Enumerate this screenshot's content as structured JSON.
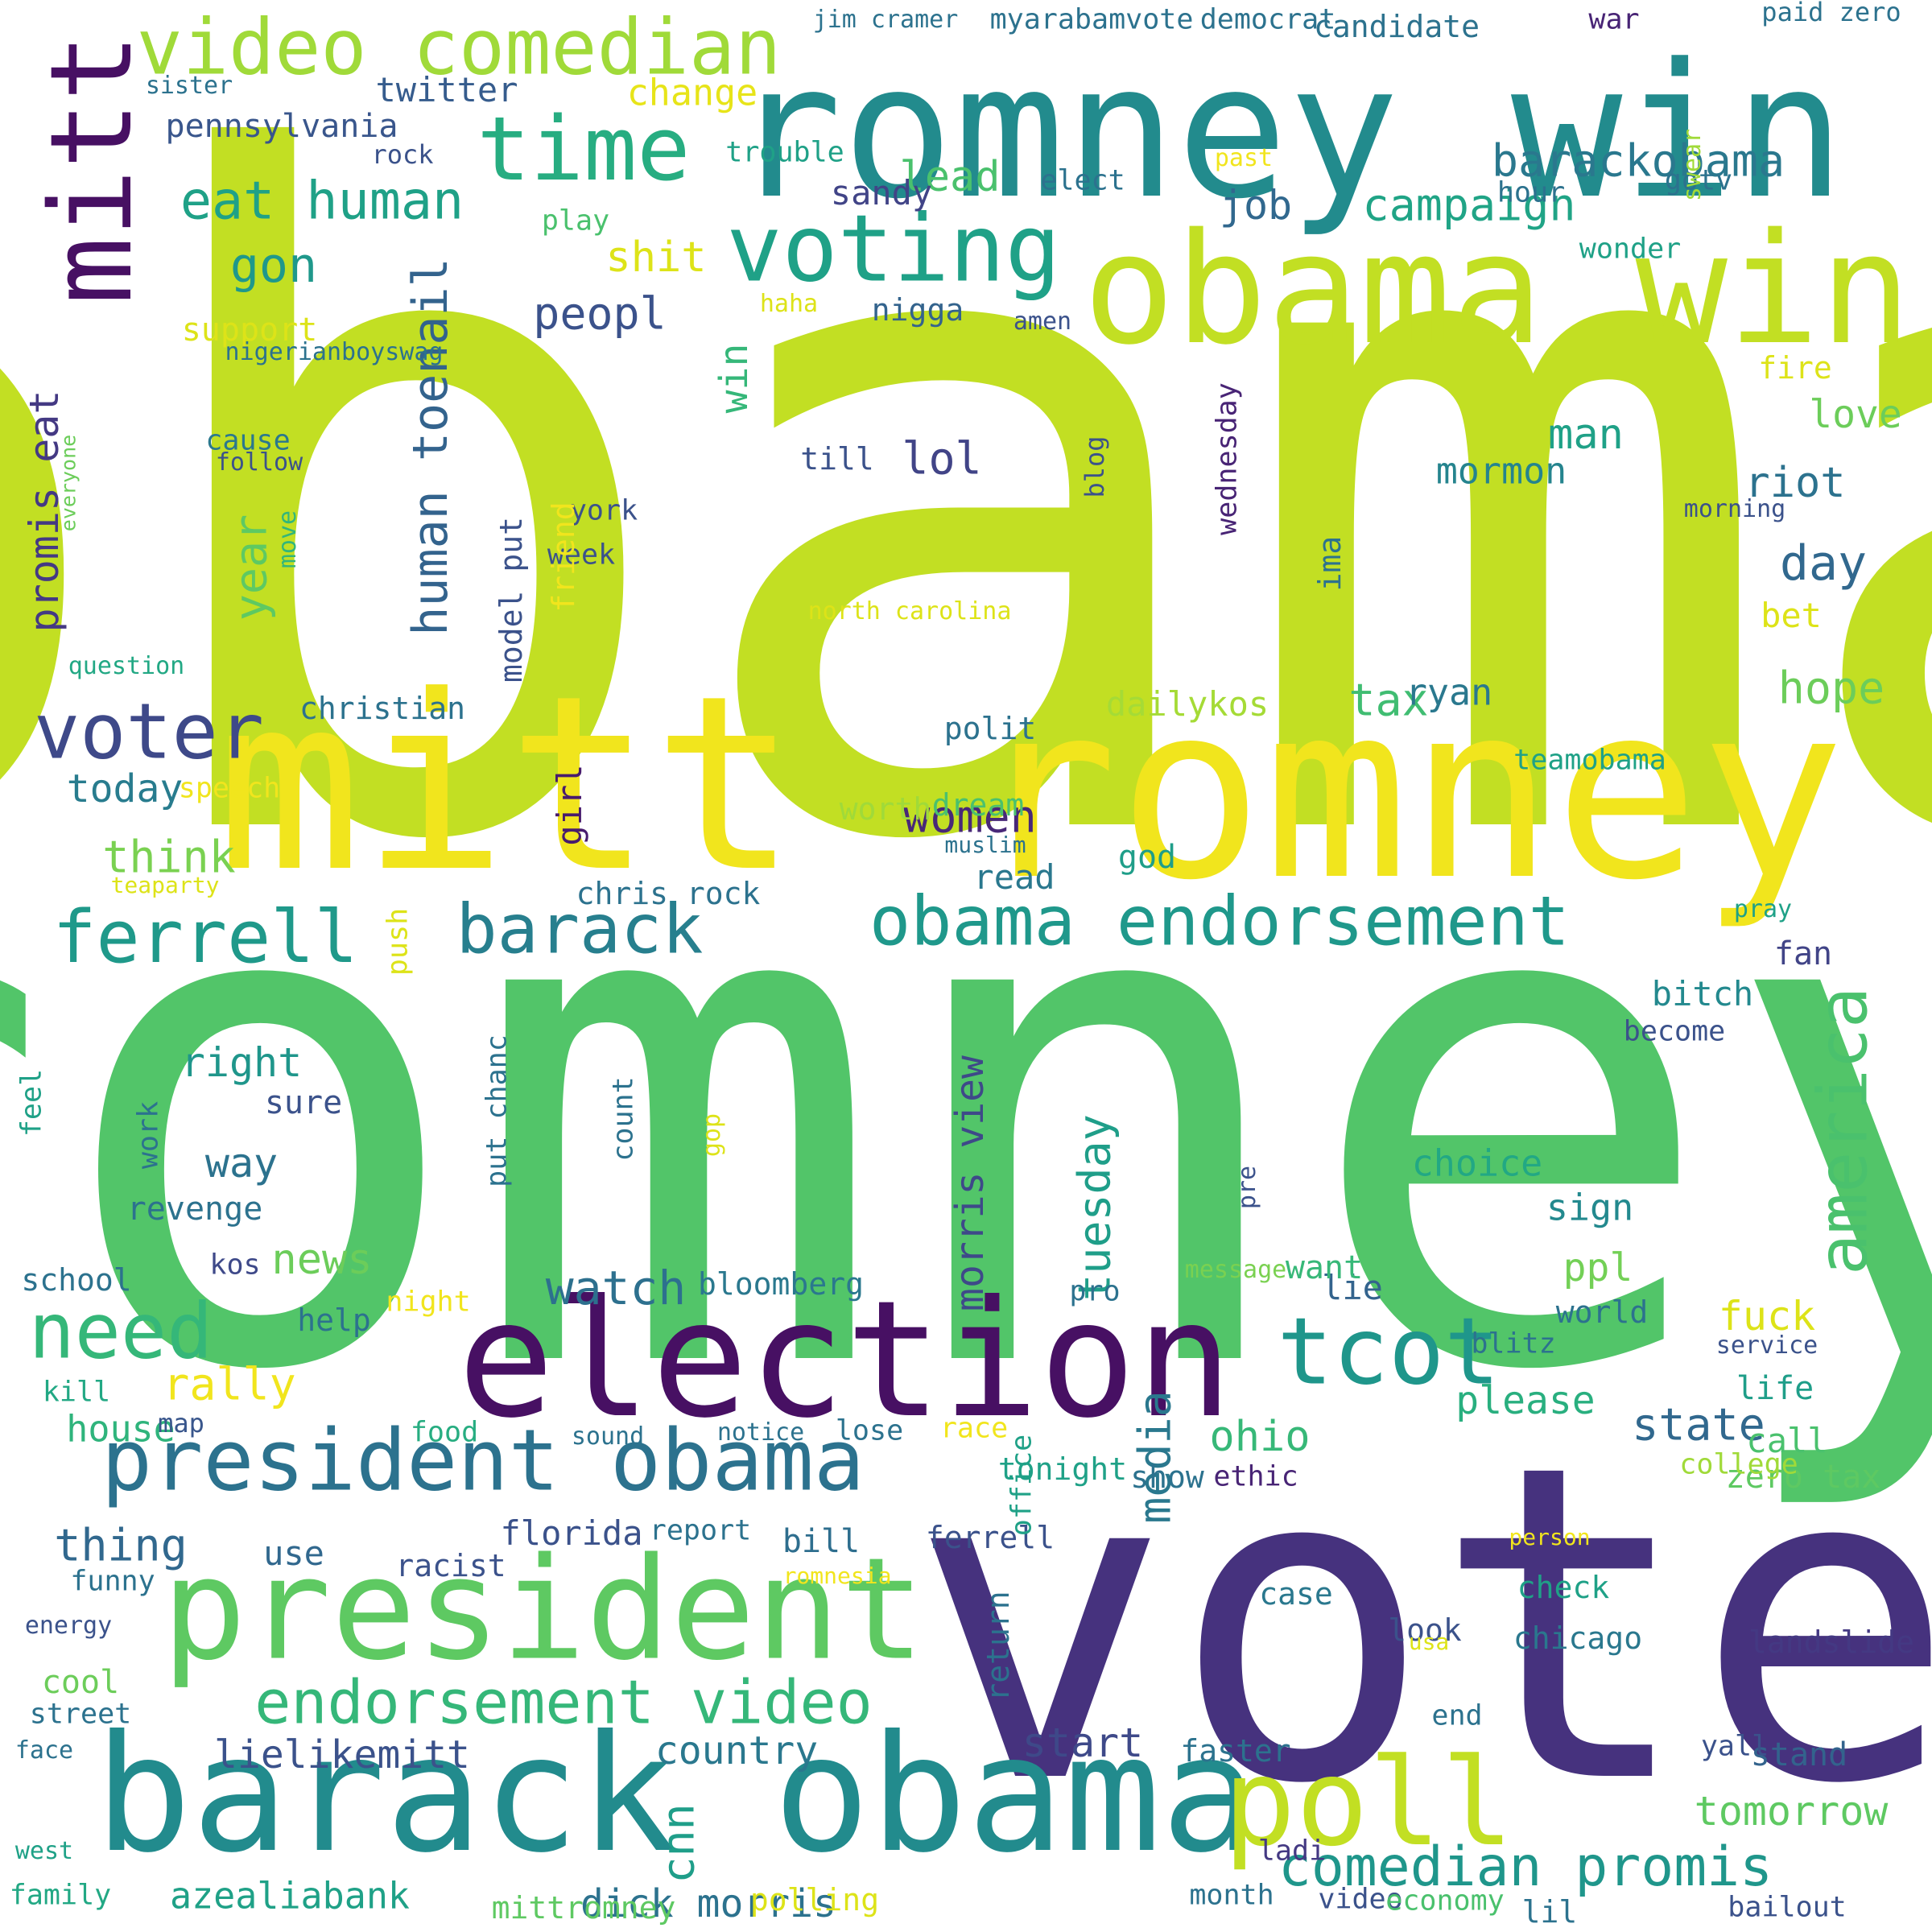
{
  "words": [
    {
      "text": "obama",
      "color": "#c2df23"
    },
    {
      "text": "romney",
      "color": "#52c569"
    },
    {
      "text": "vote",
      "color": "#46327e"
    },
    {
      "text": "romney win",
      "color": "#228b8d"
    },
    {
      "text": "mitt",
      "color": "#f1e51d"
    },
    {
      "text": "romney",
      "color": "#f1e51d"
    },
    {
      "text": "obama win",
      "color": "#c2df23"
    },
    {
      "text": "election",
      "color": "#471063"
    },
    {
      "text": "barack obama",
      "color": "#228b8d"
    },
    {
      "text": "president",
      "color": "#5ec962"
    },
    {
      "text": "president obama",
      "color": "#2c728e"
    },
    {
      "text": "poll",
      "color": "#c2df23"
    },
    {
      "text": "mitt",
      "color": "#471063"
    },
    {
      "text": "video comedian",
      "color": "#a0da39"
    },
    {
      "text": "voting",
      "color": "#1fa187"
    },
    {
      "text": "time",
      "color": "#27ad81"
    },
    {
      "text": "ferrell",
      "color": "#1f998a"
    },
    {
      "text": "barack",
      "color": "#277f8e"
    },
    {
      "text": "obama endorsement",
      "color": "#1f988b"
    },
    {
      "text": "endorsement video",
      "color": "#35b779"
    },
    {
      "text": "tcot",
      "color": "#1f968b"
    },
    {
      "text": "voter",
      "color": "#3e4989"
    },
    {
      "text": "need",
      "color": "#35b779"
    },
    {
      "text": "america",
      "color": "#4ac16d"
    },
    {
      "text": "comedian promis",
      "color": "#1f968b"
    },
    {
      "text": "eat human",
      "color": "#1fa187"
    },
    {
      "text": "human toenail",
      "color": "#33638d"
    },
    {
      "text": "promis eat",
      "color": "#443983"
    },
    {
      "text": "barackobama",
      "color": "#2a788e"
    },
    {
      "text": "campaign",
      "color": "#20a486"
    },
    {
      "text": "twitter",
      "color": "#365c8d"
    },
    {
      "text": "pennsylvania",
      "color": "#39568c"
    },
    {
      "text": "change",
      "color": "#e7e419"
    },
    {
      "text": "gon",
      "color": "#1f988b"
    },
    {
      "text": "peopl",
      "color": "#3b528b"
    },
    {
      "text": "lead",
      "color": "#4ac16d"
    },
    {
      "text": "job",
      "color": "#31688e"
    },
    {
      "text": "shit",
      "color": "#dde318"
    },
    {
      "text": "think",
      "color": "#7ad151"
    },
    {
      "text": "today",
      "color": "#287c8e"
    },
    {
      "text": "lol",
      "color": "#414487"
    },
    {
      "text": "women",
      "color": "#482878"
    },
    {
      "text": "hope",
      "color": "#6ccd5a"
    },
    {
      "text": "day",
      "color": "#31688e"
    },
    {
      "text": "riot",
      "color": "#2c728e"
    },
    {
      "text": "love",
      "color": "#6ccd5a"
    },
    {
      "text": "man",
      "color": "#1fa187"
    },
    {
      "text": "mormon",
      "color": "#25848e"
    },
    {
      "text": "tax",
      "color": "#40bd72"
    },
    {
      "text": "ryan",
      "color": "#2a788e"
    },
    {
      "text": "dailykos",
      "color": "#a5db36"
    },
    {
      "text": "year",
      "color": "#5ec962"
    },
    {
      "text": "win",
      "color": "#35b779"
    },
    {
      "text": "right",
      "color": "#1f968b"
    },
    {
      "text": "way",
      "color": "#2c728e"
    },
    {
      "text": "news",
      "color": "#6ccd5a"
    },
    {
      "text": "rally",
      "color": "#f1e51d"
    },
    {
      "text": "watch",
      "color": "#2d708e"
    },
    {
      "text": "ohio",
      "color": "#37b878"
    },
    {
      "text": "state",
      "color": "#31688e"
    },
    {
      "text": "please",
      "color": "#29af7f"
    },
    {
      "text": "media",
      "color": "#2a788e"
    },
    {
      "text": "tuesday",
      "color": "#1f9e89"
    },
    {
      "text": "morris view",
      "color": "#3e4989"
    },
    {
      "text": "start",
      "color": "#3e4989"
    },
    {
      "text": "lielikemitt",
      "color": "#3b528b"
    },
    {
      "text": "country",
      "color": "#2a788e"
    },
    {
      "text": "azealiabank",
      "color": "#1fa187"
    },
    {
      "text": "dick morris",
      "color": "#2c728e"
    },
    {
      "text": "tomorrow",
      "color": "#5ec962"
    },
    {
      "text": "thing",
      "color": "#31688e"
    },
    {
      "text": "florida",
      "color": "#3b528b"
    },
    {
      "text": "use",
      "color": "#31688e"
    },
    {
      "text": "bill",
      "color": "#2e6e8e"
    },
    {
      "text": "house",
      "color": "#2fb47c"
    },
    {
      "text": "fuck",
      "color": "#dde318"
    },
    {
      "text": "choice",
      "color": "#22a884"
    },
    {
      "text": "sign",
      "color": "#23898e"
    },
    {
      "text": "ppl",
      "color": "#73d056"
    },
    {
      "text": "life",
      "color": "#1f9e89"
    },
    {
      "text": "call",
      "color": "#4ac16d"
    },
    {
      "text": "zero tax",
      "color": "#5ec962"
    },
    {
      "text": "landslide",
      "color": "#443983"
    },
    {
      "text": "chicago",
      "color": "#2a788e"
    },
    {
      "text": "check",
      "color": "#1fa187"
    },
    {
      "text": "stand",
      "color": "#33638d"
    },
    {
      "text": "cnn",
      "color": "#1f9e89"
    },
    {
      "text": "bitch",
      "color": "#23898e"
    },
    {
      "text": "fan",
      "color": "#414487"
    },
    {
      "text": "read",
      "color": "#2a788e"
    },
    {
      "text": "god",
      "color": "#1f9e89"
    },
    {
      "text": "girl",
      "color": "#481b6d"
    },
    {
      "text": "push",
      "color": "#dde318"
    },
    {
      "text": "lie",
      "color": "#33638d"
    },
    {
      "text": "want",
      "color": "#37b878"
    },
    {
      "text": "world",
      "color": "#2c728e"
    },
    {
      "text": "sandy",
      "color": "#414487"
    },
    {
      "text": "nigga",
      "color": "#33638d"
    },
    {
      "text": "support",
      "color": "#dde318"
    },
    {
      "text": "cause",
      "color": "#2a788e"
    },
    {
      "text": "follow",
      "color": "#3b528b"
    },
    {
      "text": "move",
      "color": "#32b67a"
    },
    {
      "text": "christian",
      "color": "#2c728e"
    },
    {
      "text": "speech",
      "color": "#f1e51d"
    },
    {
      "text": "teaparty",
      "color": "#dde318"
    },
    {
      "text": "chris rock",
      "color": "#2c728e"
    },
    {
      "text": "school",
      "color": "#2c728e"
    },
    {
      "text": "kos",
      "color": "#3e4989"
    },
    {
      "text": "help",
      "color": "#2c728e"
    },
    {
      "text": "night",
      "color": "#f1e51d"
    },
    {
      "text": "bloomberg",
      "color": "#2a788e"
    },
    {
      "text": "pro",
      "color": "#2c728e"
    },
    {
      "text": "message",
      "color": "#7ad151"
    },
    {
      "text": "blitz",
      "color": "#2c728e"
    },
    {
      "text": "service",
      "color": "#3b528b"
    },
    {
      "text": "kill",
      "color": "#22a884"
    },
    {
      "text": "map",
      "color": "#39568c"
    },
    {
      "text": "food",
      "color": "#27ad81"
    },
    {
      "text": "sound",
      "color": "#2c728e"
    },
    {
      "text": "notice",
      "color": "#2c728e"
    },
    {
      "text": "lose",
      "color": "#2c728e"
    },
    {
      "text": "race",
      "color": "#f1e51d"
    },
    {
      "text": "tonight",
      "color": "#1fa187"
    },
    {
      "text": "show",
      "color": "#2c728e"
    },
    {
      "text": "ethic",
      "color": "#482475"
    },
    {
      "text": "college",
      "color": "#a0da39"
    },
    {
      "text": "funny",
      "color": "#2c728e"
    },
    {
      "text": "racist",
      "color": "#3b528b"
    },
    {
      "text": "report",
      "color": "#2c728e"
    },
    {
      "text": "romnesia",
      "color": "#f1e51d"
    },
    {
      "text": "person",
      "color": "#f1e51d"
    },
    {
      "text": "energy",
      "color": "#3b528b"
    },
    {
      "text": "cool",
      "color": "#6ccd5a"
    },
    {
      "text": "street",
      "color": "#2c728e"
    },
    {
      "text": "face",
      "color": "#2c728e"
    },
    {
      "text": "west",
      "color": "#1fa187"
    },
    {
      "text": "family",
      "color": "#22a884"
    },
    {
      "text": "mittromney",
      "color": "#5ec962"
    },
    {
      "text": "polling",
      "color": "#dde318"
    },
    {
      "text": "month",
      "color": "#2c728e"
    },
    {
      "text": "video",
      "color": "#3b528b"
    },
    {
      "text": "economy",
      "color": "#4ac16d"
    },
    {
      "text": "lil",
      "color": "#2c728e"
    },
    {
      "text": "bailout",
      "color": "#3b528b"
    },
    {
      "text": "ladi",
      "color": "#443983"
    },
    {
      "text": "case",
      "color": "#2a788e"
    },
    {
      "text": "look",
      "color": "#3b528b"
    },
    {
      "text": "usa",
      "color": "#dde318"
    },
    {
      "text": "end",
      "color": "#2c728e"
    },
    {
      "text": "faster",
      "color": "#2c728e"
    },
    {
      "text": "yall",
      "color": "#3b528b"
    },
    {
      "text": "return",
      "color": "#2c728e"
    },
    {
      "text": "ferrell",
      "color": "#3b528b"
    },
    {
      "text": "office",
      "color": "#1fa187"
    },
    {
      "text": "polit",
      "color": "#2c728e"
    },
    {
      "text": "dream",
      "color": "#4ac16d"
    },
    {
      "text": "teamobama",
      "color": "#1fa187"
    },
    {
      "text": "worth",
      "color": "#a0da39"
    },
    {
      "text": "muslim",
      "color": "#2c728e"
    },
    {
      "text": "pray",
      "color": "#1fa187"
    },
    {
      "text": "till",
      "color": "#3b528b"
    },
    {
      "text": "york",
      "color": "#3b528b"
    },
    {
      "text": "week",
      "color": "#3b528b"
    },
    {
      "text": "model put",
      "color": "#3b528b"
    },
    {
      "text": "north carolina",
      "color": "#dde318"
    },
    {
      "text": "friend",
      "color": "#f1e51d"
    },
    {
      "text": "blog",
      "color": "#3b528b"
    },
    {
      "text": "wednesday",
      "color": "#482475"
    },
    {
      "text": "ima",
      "color": "#2c728e"
    },
    {
      "text": "morning",
      "color": "#3b528b"
    },
    {
      "text": "bet",
      "color": "#dde318"
    },
    {
      "text": "fire",
      "color": "#dde318"
    },
    {
      "text": "haha",
      "color": "#dde318"
    },
    {
      "text": "amen",
      "color": "#3b528b"
    },
    {
      "text": "nigerianboyswag",
      "color": "#2c728e"
    },
    {
      "text": "question",
      "color": "#22a884"
    },
    {
      "text": "everyone",
      "color": "#6ccd5a"
    },
    {
      "text": "sister",
      "color": "#2c728e"
    },
    {
      "text": "rock",
      "color": "#3b528b"
    },
    {
      "text": "play",
      "color": "#4ac16d"
    },
    {
      "text": "trouble",
      "color": "#1fa187"
    },
    {
      "text": "elect",
      "color": "#2c728e"
    },
    {
      "text": "past",
      "color": "#f1e51d"
    },
    {
      "text": "gotv",
      "color": "#2c728e"
    },
    {
      "text": "hour",
      "color": "#2c728e"
    },
    {
      "text": "wonder",
      "color": "#1fa187"
    },
    {
      "text": "become",
      "color": "#3b528b"
    },
    {
      "text": "swear",
      "color": "#a0da39"
    },
    {
      "text": "paid zero",
      "color": "#2c728e"
    },
    {
      "text": "war",
      "color": "#482475"
    },
    {
      "text": "candidate",
      "color": "#2c728e"
    },
    {
      "text": "democrat",
      "color": "#2c728e"
    },
    {
      "text": "myarabamvote",
      "color": "#2c728e"
    },
    {
      "text": "jim cramer",
      "color": "#2c728e"
    },
    {
      "text": "feel",
      "color": "#1fa187"
    },
    {
      "text": "work",
      "color": "#2c728e"
    },
    {
      "text": "put chanc",
      "color": "#2c728e"
    },
    {
      "text": "count",
      "color": "#2c728e"
    },
    {
      "text": "gop",
      "color": "#dde318"
    },
    {
      "text": "pre",
      "color": "#3b528b"
    },
    {
      "text": "sure",
      "color": "#3b528b"
    },
    {
      "text": "revenge",
      "color": "#2c728e"
    }
  ]
}
